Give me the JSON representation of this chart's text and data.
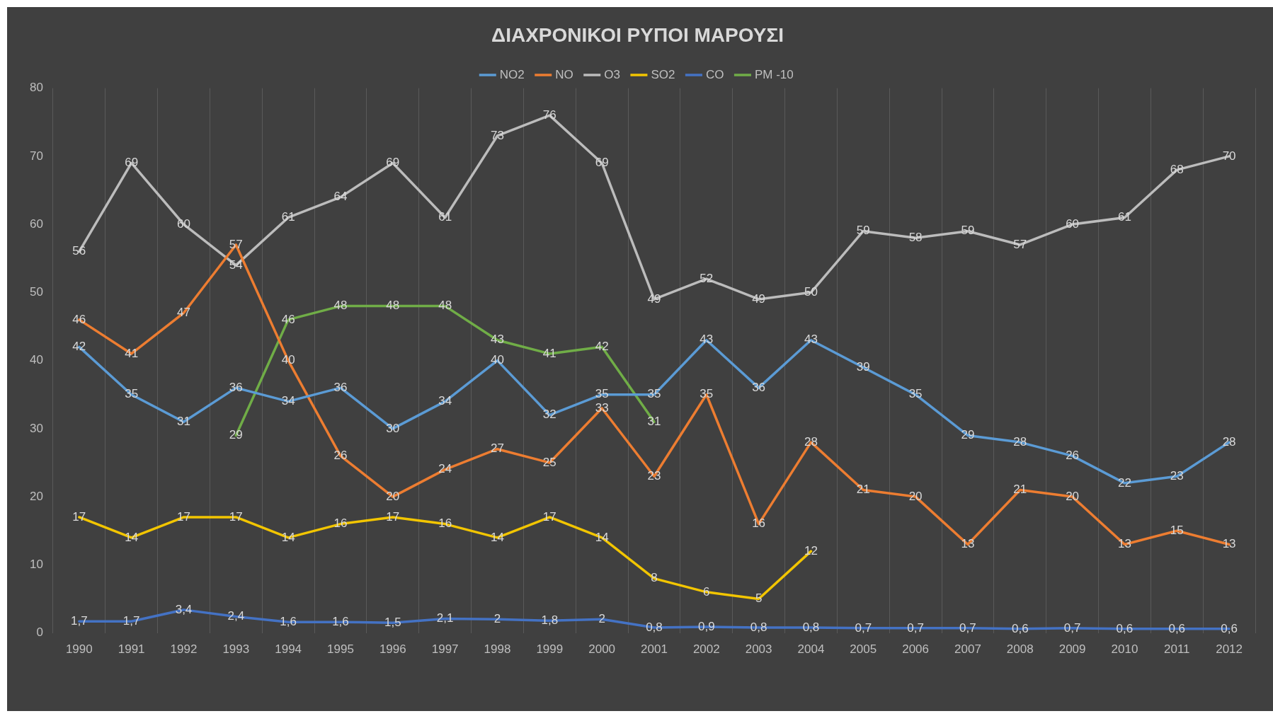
{
  "chart_data": {
    "type": "line",
    "title": "ΔΙΑΧΡΟΝΙΚΟΙ ΡΥΠΟΙ ΜΑΡΟΥΣΙ",
    "categories": [
      "1990",
      "1991",
      "1992",
      "1993",
      "1994",
      "1995",
      "1996",
      "1997",
      "1998",
      "1999",
      "2000",
      "2001",
      "2002",
      "2003",
      "2004",
      "2005",
      "2006",
      "2007",
      "2008",
      "2009",
      "2010",
      "2011",
      "2012"
    ],
    "series": [
      {
        "name": "NO2",
        "color": "#5b9bd5",
        "values": [
          42,
          35,
          31,
          36,
          34,
          36,
          30,
          34,
          40,
          32,
          35,
          35,
          43,
          36,
          43,
          39,
          35,
          29,
          28,
          26,
          22,
          23,
          28
        ]
      },
      {
        "name": "NO",
        "color": "#ed7d31",
        "values": [
          46,
          41,
          47,
          57,
          40,
          26,
          20,
          24,
          27,
          25,
          33,
          23,
          35,
          16,
          28,
          21,
          20,
          13,
          21,
          20,
          13,
          15,
          13
        ]
      },
      {
        "name": "O3",
        "color": "#bcbcbc",
        "values": [
          56,
          69,
          60,
          54,
          61,
          64,
          69,
          61,
          73,
          76,
          69,
          49,
          52,
          49,
          50,
          59,
          58,
          59,
          57,
          60,
          61,
          68,
          70
        ]
      },
      {
        "name": "SO2",
        "color": "#f2c500",
        "values": [
          17,
          14,
          17,
          17,
          14,
          16,
          17,
          16,
          14,
          17,
          14,
          8,
          6,
          5,
          12,
          null,
          null,
          null,
          null,
          null,
          null,
          null,
          null
        ]
      },
      {
        "name": "CO",
        "color": "#4472c4",
        "values": [
          1.7,
          1.7,
          3.4,
          2.4,
          1.6,
          1.6,
          1.5,
          2.1,
          2,
          1.8,
          2,
          0.8,
          0.9,
          0.8,
          0.8,
          0.7,
          0.7,
          0.7,
          0.6,
          0.7,
          0.6,
          0.6,
          0.6
        ],
        "value_labels": [
          "1,7",
          "1,7",
          "3,4",
          "2,4",
          "1,6",
          "1,6",
          "1,5",
          "2,1",
          "2",
          "1,8",
          "2",
          "0,8",
          "0,9",
          "0,8",
          "0,8",
          "0,7",
          "0,7",
          "0,7",
          "0,6",
          "0,7",
          "0,6",
          "0,6",
          "0,6"
        ]
      },
      {
        "name": "PM -10",
        "color": "#70ad47",
        "values": [
          null,
          null,
          null,
          29,
          46,
          48,
          48,
          48,
          43,
          41,
          42,
          31,
          null,
          null,
          null,
          null,
          null,
          null,
          null,
          null,
          null,
          null,
          null
        ]
      }
    ],
    "ylim": [
      0,
      80
    ],
    "yticks": [
      0,
      10,
      20,
      30,
      40,
      50,
      60,
      70,
      80
    ],
    "grid": "x",
    "legend": "top",
    "marker": "none",
    "line_style": "solid",
    "data_labels": true
  }
}
